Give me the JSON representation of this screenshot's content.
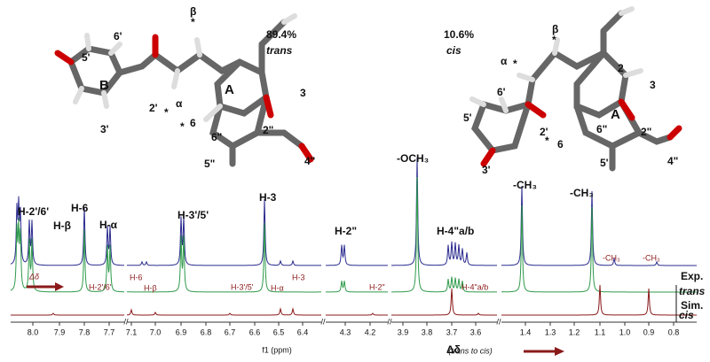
{
  "left_molecule": {
    "percent": "89.4%",
    "isomer": "trans",
    "labels": [
      "6'",
      "5'",
      "B",
      "2'",
      "3'",
      "α",
      "*",
      "*",
      "6",
      "β",
      "*",
      "A",
      "3",
      "6\"",
      "5\"",
      "2\"",
      "4\""
    ]
  },
  "right_molecule": {
    "percent": "10.6%",
    "isomer": "cis",
    "labels": [
      "β",
      "*",
      "α",
      "*",
      "6'",
      "5'",
      "2'",
      "*",
      "3'",
      "2",
      "3",
      "A",
      "6",
      "6\"",
      "5'",
      "2\"",
      "4\""
    ]
  },
  "spectrum": {
    "exp_labels": [
      "H-2'/6'",
      "H-β",
      "H-6",
      "H-α",
      "H-3'/5'",
      "H-3",
      "H-2\"",
      "-OCH₃",
      "H-4\"a/b",
      "-CH₃",
      "-CH₃"
    ],
    "cis_labels": [
      "H-2'/6'",
      "H-6",
      "H-β",
      "H-3'/5'",
      "H-α",
      "H-3",
      "H-2\"",
      "H-4\"a/b",
      "-CH₃",
      "-CH₃"
    ],
    "delta": "Δδ",
    "trace_labels": {
      "exp": "Exp.",
      "trans": "trans",
      "sim": "Sim.",
      "cis": "cis"
    },
    "ticks": [
      [
        "8.0",
        "7.9",
        "7.8",
        "7.7"
      ],
      [
        "7.1",
        "7.0",
        "6.9",
        "6.8",
        "6.7",
        "6.6",
        "6.5",
        "6.4"
      ],
      [
        "4.3",
        "4.2"
      ],
      [
        "3.9",
        "3.8",
        "3.7",
        "3.6"
      ],
      [
        "1.4",
        "1.3",
        "1.2",
        "1.1",
        "1.0",
        "0.9",
        "0.8"
      ]
    ],
    "axis_label": "f1 (ppm)",
    "delta_axis": "Δδ",
    "delta_note": "(trans to cis)"
  }
}
